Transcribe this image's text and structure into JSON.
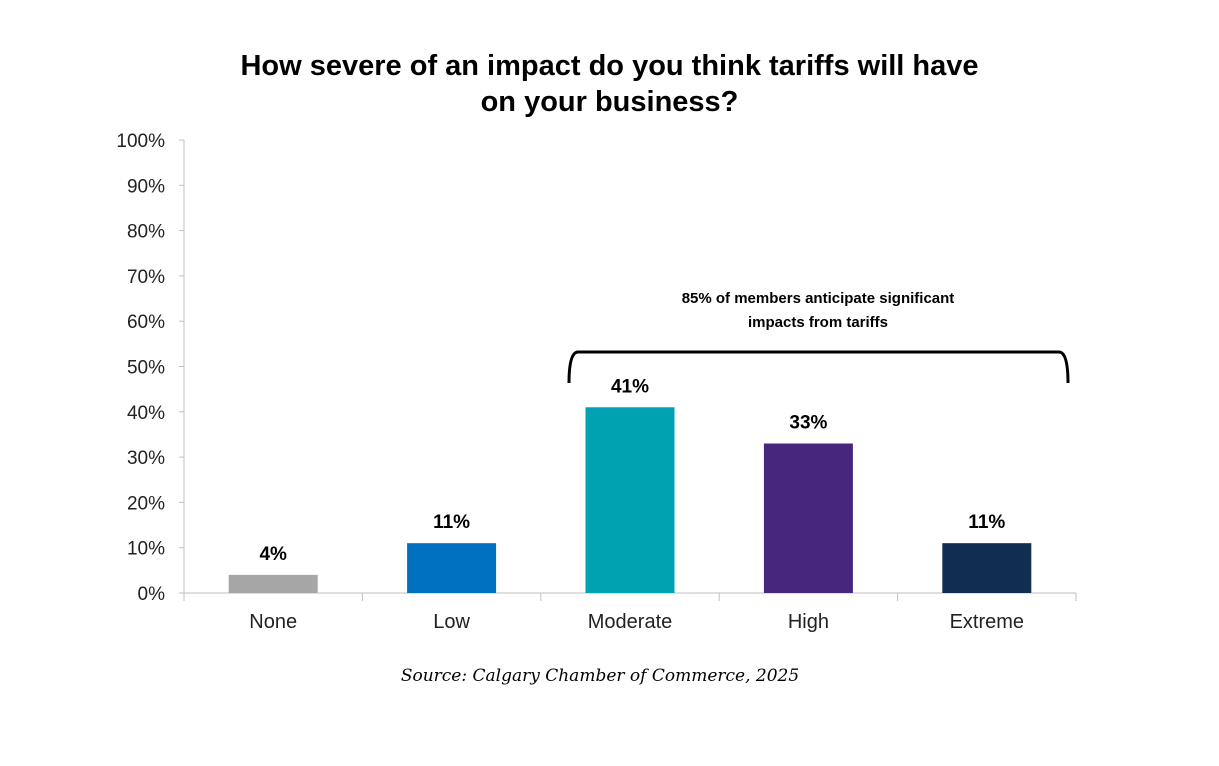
{
  "chart_data": {
    "type": "bar",
    "title_lines": [
      "How severe of an impact do you think tariffs will have",
      "on your business?"
    ],
    "categories": [
      "None",
      "Low",
      "Moderate",
      "High",
      "Extreme"
    ],
    "values": [
      4,
      11,
      41,
      33,
      11
    ],
    "data_labels": [
      "4%",
      "11%",
      "41%",
      "33%",
      "11%"
    ],
    "colors": [
      "#a6a6a6",
      "#0070c0",
      "#00a2b1",
      "#47267e",
      "#112e52"
    ],
    "ylim": [
      0,
      100
    ],
    "yticks": [
      "0%",
      "10%",
      "20%",
      "30%",
      "40%",
      "50%",
      "60%",
      "70%",
      "80%",
      "90%",
      "100%"
    ],
    "xlabel": "",
    "ylabel": "",
    "grid": false,
    "annotation": {
      "lines": [
        "85% of members anticipate significant",
        "impacts from tariffs"
      ],
      "spans_categories": [
        "Moderate",
        "Extreme"
      ]
    },
    "source": "Source: Calgary Chamber of Commerce, 2025"
  }
}
